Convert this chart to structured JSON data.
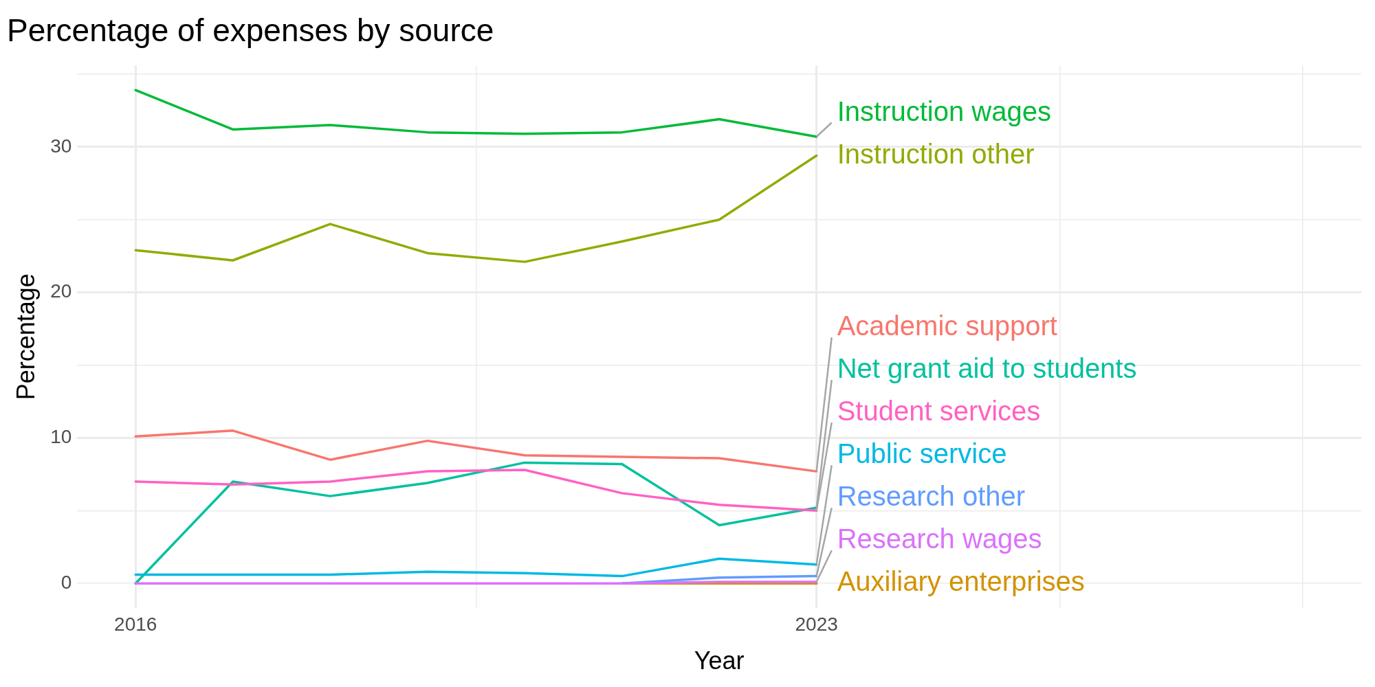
{
  "chart_data": {
    "type": "line",
    "title": "Percentage of expenses by source",
    "xlabel": "Year",
    "ylabel": "Percentage",
    "x": [
      2016,
      2017,
      2018,
      2019,
      2020,
      2021,
      2022,
      2023
    ],
    "xlim": [
      2015.4,
      2028.6
    ],
    "xticks": [
      2016,
      {
        "value": 2019.5,
        "label": null
      },
      2023,
      {
        "value": 2025.5,
        "label": null
      },
      {
        "value": 2028,
        "label": null
      }
    ],
    "ylim": [
      -1.7,
      35.6
    ],
    "yticks": [
      0,
      {
        "value": 5,
        "label": null
      },
      10,
      {
        "value": 15,
        "label": null
      },
      20,
      {
        "value": 25,
        "label": null
      },
      30,
      {
        "value": 35,
        "label": null
      }
    ],
    "grid": true,
    "line_style": "solid",
    "marker": "none",
    "series": [
      {
        "name": "Academic support",
        "color": "#f8766d",
        "values": [
          10.1,
          10.5,
          8.5,
          9.8,
          8.8,
          8.7,
          8.6,
          7.7
        ]
      },
      {
        "name": "Auxiliary enterprises",
        "color": "#d39200",
        "values": [
          null,
          null,
          null,
          null,
          null,
          0,
          0,
          0
        ]
      },
      {
        "name": "Instruction other",
        "color": "#93aa00",
        "values": [
          22.9,
          22.2,
          24.7,
          22.7,
          22.1,
          23.5,
          25.0,
          29.4
        ]
      },
      {
        "name": "Instruction wages",
        "color": "#00ba38",
        "values": [
          33.9,
          31.2,
          31.5,
          31.0,
          30.9,
          31.0,
          31.9,
          30.7
        ]
      },
      {
        "name": "Net grant aid to students",
        "color": "#00c19f",
        "values": [
          0,
          7.0,
          6.0,
          6.9,
          8.3,
          8.2,
          4.0,
          5.2
        ]
      },
      {
        "name": "Public service",
        "color": "#00b9e3",
        "values": [
          0.6,
          0.6,
          0.6,
          0.8,
          0.7,
          0.5,
          1.7,
          1.3
        ]
      },
      {
        "name": "Research other",
        "color": "#619cff",
        "values": [
          null,
          null,
          null,
          null,
          null,
          0,
          0.4,
          0.5
        ]
      },
      {
        "name": "Research wages",
        "color": "#db72fb",
        "values": [
          0,
          0,
          0,
          0,
          0,
          0,
          0.1,
          0.1
        ]
      },
      {
        "name": "Student services",
        "color": "#ff61c3",
        "values": [
          7.0,
          6.8,
          7.0,
          7.7,
          7.8,
          6.2,
          5.4,
          5.0
        ]
      }
    ]
  }
}
